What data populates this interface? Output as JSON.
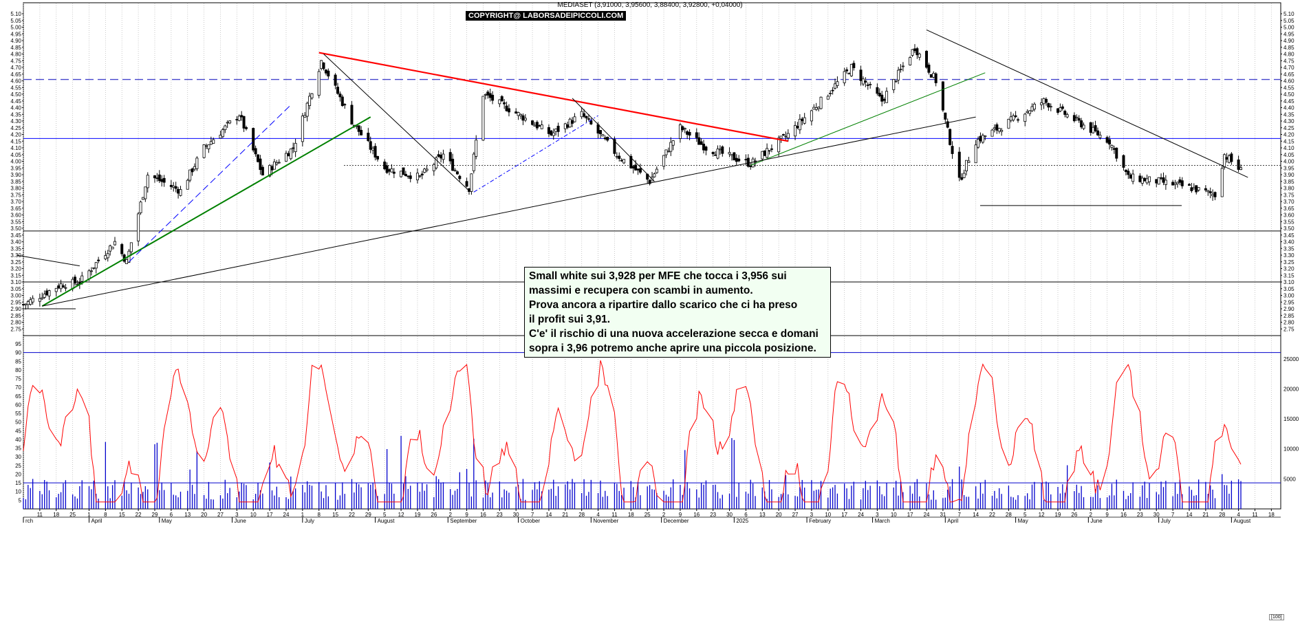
{
  "header": {
    "title": "MEDIASET (3,91000, 3,95600, 3,88400, 3,92800, +0,04000)",
    "copyright": "COPYRIGHT@ LABORSADEIPICCOLI.COM"
  },
  "annotation": {
    "lines": [
      "Small white sui 3,928 per MFE che tocca i 3,956 sui",
      "massimi e recupera con scambi in aumento.",
      "Prova ancora a ripartire dallo scarico che ci ha preso",
      "il profit sui 3,91.",
      "C'e' il rischio di una nuova accelerazione secca e domani",
      "sopra i 3,96 potremo anche aprire una piccola posizione."
    ]
  },
  "colors": {
    "candle": "#000000",
    "resistance": "#ff0000",
    "uptrend": "#008000",
    "channel": "#0000ff",
    "dashed_level": "#4444cc",
    "oscillator": "#ff0000",
    "volume": "#0000cc"
  },
  "chart_data": [
    {
      "type": "candlestick",
      "ylim": [
        2.7,
        5.1
      ],
      "y_ticks": [
        "5.10",
        "5.05",
        "5.00",
        "4.95",
        "4.90",
        "4.85",
        "4.80",
        "4.75",
        "4.70",
        "4.65",
        "4.60",
        "4.55",
        "4.50",
        "4.45",
        "4.40",
        "4.35",
        "4.30",
        "4.25",
        "4.20",
        "4.15",
        "4.10",
        "4.05",
        "4.00",
        "3.95",
        "3.90",
        "3.85",
        "3.80",
        "3.75",
        "3.70",
        "3.65",
        "3.60",
        "3.55",
        "3.50",
        "3.45",
        "3.40",
        "3.35",
        "3.30",
        "3.25",
        "3.20",
        "3.15",
        "3.10",
        "3.05",
        "3.00",
        "2.95",
        "2.90",
        "2.85",
        "2.80",
        "2.75"
      ],
      "x_ticks": [
        "11",
        "18",
        "25",
        "1",
        "8",
        "15",
        "22",
        "29",
        "6",
        "13",
        "20",
        "27",
        "3",
        "10",
        "17",
        "24",
        "1",
        "8",
        "15",
        "22",
        "29",
        "5",
        "12",
        "19",
        "26",
        "2",
        "9",
        "16",
        "23",
        "30",
        "7",
        "14",
        "21",
        "28",
        "4",
        "11",
        "18",
        "25",
        "2",
        "9",
        "16",
        "23",
        "30",
        "6",
        "13",
        "20",
        "27",
        "3",
        "10",
        "17",
        "24",
        "3",
        "10",
        "17",
        "24",
        "31",
        "7",
        "14",
        "22",
        "28",
        "5",
        "12",
        "19",
        "26",
        "2",
        "9",
        "16",
        "23",
        "30",
        "7",
        "14",
        "21",
        "28",
        "4",
        "11",
        "18"
      ],
      "month_labels": [
        "rch",
        "April",
        "May",
        "June",
        "July",
        "August",
        "September",
        "October",
        "November",
        "December",
        "2025",
        "February",
        "March",
        "April",
        "May",
        "June",
        "July",
        "August"
      ],
      "series_anchors": [
        {
          "date": "2024-03-04",
          "close": 2.93
        },
        {
          "date": "2024-03-20",
          "close": 3.08
        },
        {
          "date": "2024-03-28",
          "close": 3.1
        },
        {
          "date": "2024-04-12",
          "close": 3.4
        },
        {
          "date": "2024-04-17",
          "close": 3.25
        },
        {
          "date": "2024-04-26",
          "close": 3.9
        },
        {
          "date": "2024-05-10",
          "close": 3.78
        },
        {
          "date": "2024-05-20",
          "close": 4.1
        },
        {
          "date": "2024-06-04",
          "close": 4.35
        },
        {
          "date": "2024-06-14",
          "close": 3.9
        },
        {
          "date": "2024-06-27",
          "close": 4.1
        },
        {
          "date": "2024-07-09",
          "close": 4.75
        },
        {
          "date": "2024-07-22",
          "close": 4.3
        },
        {
          "date": "2024-08-05",
          "close": 3.95
        },
        {
          "date": "2024-08-20",
          "close": 3.88
        },
        {
          "date": "2024-08-30",
          "close": 4.05
        },
        {
          "date": "2024-09-10",
          "close": 3.8
        },
        {
          "date": "2024-09-16",
          "close": 4.5
        },
        {
          "date": "2024-10-01",
          "close": 4.35
        },
        {
          "date": "2024-10-15",
          "close": 4.2
        },
        {
          "date": "2024-10-28",
          "close": 4.35
        },
        {
          "date": "2024-11-12",
          "close": 4.05
        },
        {
          "date": "2024-11-26",
          "close": 3.85
        },
        {
          "date": "2024-12-09",
          "close": 4.25
        },
        {
          "date": "2024-12-20",
          "close": 4.1
        },
        {
          "date": "2025-01-08",
          "close": 3.98
        },
        {
          "date": "2025-01-24",
          "close": 4.2
        },
        {
          "date": "2025-02-07",
          "close": 4.45
        },
        {
          "date": "2025-02-20",
          "close": 4.7
        },
        {
          "date": "2025-03-05",
          "close": 4.45
        },
        {
          "date": "2025-03-19",
          "close": 4.85
        },
        {
          "date": "2025-03-28",
          "close": 4.6
        },
        {
          "date": "2025-04-07",
          "close": 3.85
        },
        {
          "date": "2025-04-14",
          "close": 4.15
        },
        {
          "date": "2025-04-24",
          "close": 4.25
        },
        {
          "date": "2025-05-13",
          "close": 4.45
        },
        {
          "date": "2025-05-27",
          "close": 4.3
        },
        {
          "date": "2025-06-10",
          "close": 4.15
        },
        {
          "date": "2025-06-18",
          "close": 3.88
        },
        {
          "date": "2025-07-01",
          "close": 3.85
        },
        {
          "date": "2025-07-15",
          "close": 3.8
        },
        {
          "date": "2025-07-25",
          "close": 3.75
        },
        {
          "date": "2025-07-29",
          "close": 4.05
        },
        {
          "date": "2025-08-05",
          "close": 3.93
        }
      ],
      "horizontal_levels": [
        {
          "price": 4.61,
          "style": "dashed"
        },
        {
          "price": 4.17,
          "style": "solid-blue"
        },
        {
          "price": 3.97,
          "style": "dotted"
        },
        {
          "price": 3.48,
          "style": "solid-black"
        },
        {
          "price": 3.1,
          "style": "solid-black"
        },
        {
          "price": 3.67,
          "style": "segment"
        }
      ]
    },
    {
      "type": "line",
      "ylim": [
        0,
        95
      ],
      "y_ticks": [
        "95",
        "90",
        "85",
        "80",
        "75",
        "70",
        "65",
        "60",
        "55",
        "50",
        "45",
        "40",
        "35",
        "30",
        "25",
        "20",
        "15",
        "10",
        "5"
      ],
      "levels": [
        90,
        15
      ]
    },
    {
      "type": "bar",
      "ylim": [
        0,
        27500
      ],
      "y_ticks": [
        "25000",
        "20000",
        "15000",
        "10000",
        "5000"
      ]
    }
  ],
  "footer": {
    "corner_label": "[100]"
  }
}
